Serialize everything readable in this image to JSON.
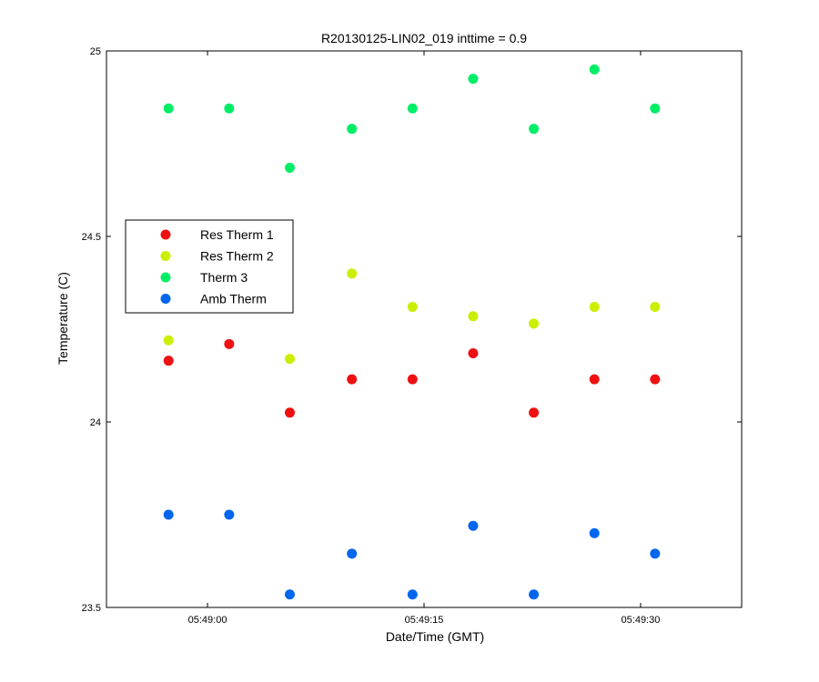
{
  "chart_data": {
    "type": "scatter",
    "title": "R20130125-LIN02_019 inttime = 0.9",
    "xlabel": "Date/Time (GMT)",
    "ylabel": "Temperature (C)",
    "x_unit": "time",
    "xlim": [
      "05:48:53",
      "05:49:37"
    ],
    "ylim": [
      23.5,
      25
    ],
    "x_ticks": [
      "05:49:00",
      "05:49:15",
      "05:49:30"
    ],
    "y_ticks": [
      "23.5",
      "24",
      "24.5",
      "25"
    ],
    "legend_position": "middle-left",
    "grid": false,
    "x": [
      "05:48:57.3",
      "05:49:01.5",
      "05:49:05.7",
      "05:49:10.0",
      "05:49:14.2",
      "05:49:18.4",
      "05:49:22.6",
      "05:49:26.8",
      "05:49:31.0"
    ],
    "series": [
      {
        "name": "Res Therm 1",
        "color": "#ee1111",
        "values": [
          24.165,
          24.21,
          24.025,
          24.115,
          24.115,
          24.185,
          24.025,
          24.115,
          24.115
        ]
      },
      {
        "name": "Res Therm 2",
        "color": "#ccee00",
        "values": [
          24.22,
          null,
          24.17,
          24.4,
          24.31,
          24.285,
          24.265,
          24.31,
          24.31
        ]
      },
      {
        "name": "Therm 3",
        "color": "#00ee66",
        "values": [
          24.845,
          24.845,
          24.685,
          24.79,
          24.845,
          24.925,
          24.79,
          24.95,
          24.845
        ]
      },
      {
        "name": "Amb Therm",
        "color": "#0066ee",
        "values": [
          23.75,
          23.75,
          23.535,
          23.645,
          23.535,
          23.72,
          23.535,
          23.7,
          23.645
        ]
      }
    ]
  }
}
